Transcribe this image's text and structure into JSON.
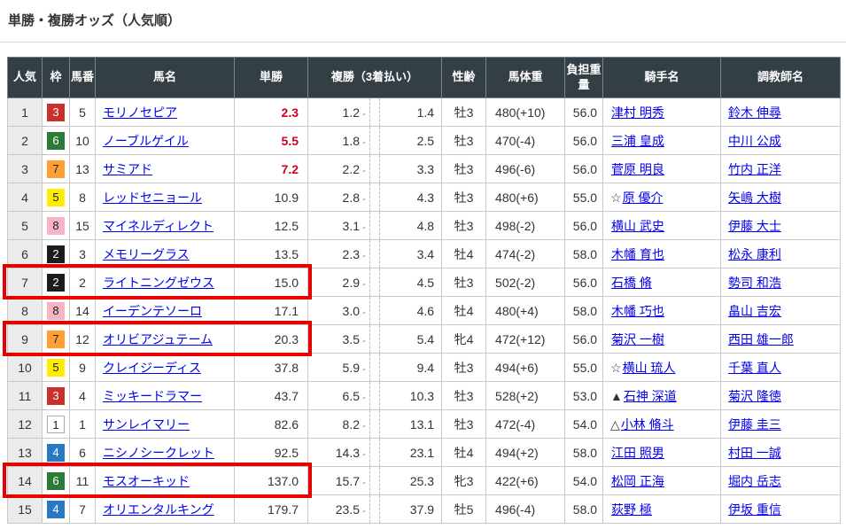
{
  "page": {
    "title": "単勝・複勝オッズ（人気順）"
  },
  "colors": {
    "header_bg": "#333e45",
    "hot_odds_red": "#cc0022",
    "highlight_red": "#e60000",
    "link_blue": "#0000ee",
    "rank_col_bg": "#ebebeb",
    "waku": {
      "1": {
        "bg": "#ffffff",
        "fg": "#222222",
        "border": "#aaaaaa"
      },
      "2": {
        "bg": "#1c1c1c",
        "fg": "#ffffff"
      },
      "3": {
        "bg": "#c9302c",
        "fg": "#ffffff"
      },
      "4": {
        "bg": "#2779c4",
        "fg": "#ffffff"
      },
      "5": {
        "bg": "#ffec00",
        "fg": "#222222"
      },
      "6": {
        "bg": "#2c7a38",
        "fg": "#ffffff"
      },
      "7": {
        "bg": "#ffa032",
        "fg": "#222222"
      },
      "8": {
        "bg": "#f6b3c3",
        "fg": "#222222"
      }
    }
  },
  "table": {
    "headers": {
      "ninki": "人気",
      "waku": "枠",
      "umaban": "馬番",
      "bamei": "馬名",
      "tansho": "単勝",
      "fukusho": "複勝（3着払い）",
      "seirei": "性齢",
      "bataiju": "馬体重",
      "futan": "負担重量",
      "kishu": "騎手名",
      "chokyoshi": "調教師名"
    },
    "place_separator": "-",
    "rows": [
      {
        "rank": "1",
        "waku": "3",
        "umaban": "5",
        "name": "モリノセピア",
        "win": "2.3",
        "win_hot": true,
        "place_low": "1.2",
        "place_high": "1.4",
        "sex_age": "牡3",
        "weight": "480(+10)",
        "impost": "56.0",
        "jockey_prefix": "",
        "jockey": "津村 明秀",
        "trainer": "鈴木 伸尋",
        "highlight": false
      },
      {
        "rank": "2",
        "waku": "6",
        "umaban": "10",
        "name": "ノーブルゲイル",
        "win": "5.5",
        "win_hot": true,
        "place_low": "1.8",
        "place_high": "2.5",
        "sex_age": "牡3",
        "weight": "470(-4)",
        "impost": "56.0",
        "jockey_prefix": "",
        "jockey": "三浦 皇成",
        "trainer": "中川 公成",
        "highlight": false
      },
      {
        "rank": "3",
        "waku": "7",
        "umaban": "13",
        "name": "サミアド",
        "win": "7.2",
        "win_hot": true,
        "place_low": "2.2",
        "place_high": "3.3",
        "sex_age": "牡3",
        "weight": "496(-6)",
        "impost": "56.0",
        "jockey_prefix": "",
        "jockey": "菅原 明良",
        "trainer": "竹内 正洋",
        "highlight": false
      },
      {
        "rank": "4",
        "waku": "5",
        "umaban": "8",
        "name": "レッドセニョール",
        "win": "10.9",
        "win_hot": false,
        "place_low": "2.8",
        "place_high": "4.3",
        "sex_age": "牡3",
        "weight": "480(+6)",
        "impost": "55.0",
        "jockey_prefix": "☆",
        "jockey": "原 優介",
        "trainer": "矢嶋 大樹",
        "highlight": false
      },
      {
        "rank": "5",
        "waku": "8",
        "umaban": "15",
        "name": "マイネルディレクト",
        "win": "12.5",
        "win_hot": false,
        "place_low": "3.1",
        "place_high": "4.8",
        "sex_age": "牡3",
        "weight": "498(-2)",
        "impost": "56.0",
        "jockey_prefix": "",
        "jockey": "横山 武史",
        "trainer": "伊藤 大士",
        "highlight": false
      },
      {
        "rank": "6",
        "waku": "2",
        "umaban": "3",
        "name": "メモリーグラス",
        "win": "13.5",
        "win_hot": false,
        "place_low": "2.3",
        "place_high": "3.4",
        "sex_age": "牡4",
        "weight": "474(-2)",
        "impost": "58.0",
        "jockey_prefix": "",
        "jockey": "木幡 育也",
        "trainer": "松永 康利",
        "highlight": false
      },
      {
        "rank": "7",
        "waku": "2",
        "umaban": "2",
        "name": "ライトニングゼウス",
        "win": "15.0",
        "win_hot": false,
        "place_low": "2.9",
        "place_high": "4.5",
        "sex_age": "牡3",
        "weight": "502(-2)",
        "impost": "56.0",
        "jockey_prefix": "",
        "jockey": "石橋 脩",
        "trainer": "勢司 和浩",
        "highlight": true
      },
      {
        "rank": "8",
        "waku": "8",
        "umaban": "14",
        "name": "イーデンテソーロ",
        "win": "17.1",
        "win_hot": false,
        "place_low": "3.0",
        "place_high": "4.6",
        "sex_age": "牡4",
        "weight": "480(+4)",
        "impost": "58.0",
        "jockey_prefix": "",
        "jockey": "木幡 巧也",
        "trainer": "畠山 吉宏",
        "highlight": false
      },
      {
        "rank": "9",
        "waku": "7",
        "umaban": "12",
        "name": "オリビアジュテーム",
        "win": "20.3",
        "win_hot": false,
        "place_low": "3.5",
        "place_high": "5.4",
        "sex_age": "牝4",
        "weight": "472(+12)",
        "impost": "56.0",
        "jockey_prefix": "",
        "jockey": "菊沢 一樹",
        "trainer": "西田 雄一郎",
        "highlight": true
      },
      {
        "rank": "10",
        "waku": "5",
        "umaban": "9",
        "name": "クレイジーディス",
        "win": "37.8",
        "win_hot": false,
        "place_low": "5.9",
        "place_high": "9.4",
        "sex_age": "牡3",
        "weight": "494(+6)",
        "impost": "55.0",
        "jockey_prefix": "☆",
        "jockey": "横山 琉人",
        "trainer": "千葉 直人",
        "highlight": false
      },
      {
        "rank": "11",
        "waku": "3",
        "umaban": "4",
        "name": "ミッキードラマー",
        "win": "43.7",
        "win_hot": false,
        "place_low": "6.5",
        "place_high": "10.3",
        "sex_age": "牡3",
        "weight": "528(+2)",
        "impost": "53.0",
        "jockey_prefix": "▲",
        "jockey": "石神 深道",
        "trainer": "菊沢 隆徳",
        "highlight": false
      },
      {
        "rank": "12",
        "waku": "1",
        "umaban": "1",
        "name": "サンレイマリー",
        "win": "82.6",
        "win_hot": false,
        "place_low": "8.2",
        "place_high": "13.1",
        "sex_age": "牡3",
        "weight": "472(-4)",
        "impost": "54.0",
        "jockey_prefix": "△",
        "jockey": "小林 脩斗",
        "trainer": "伊藤 圭三",
        "highlight": false
      },
      {
        "rank": "13",
        "waku": "4",
        "umaban": "6",
        "name": "ニシノシークレット",
        "win": "92.5",
        "win_hot": false,
        "place_low": "14.3",
        "place_high": "23.1",
        "sex_age": "牡4",
        "weight": "494(+2)",
        "impost": "58.0",
        "jockey_prefix": "",
        "jockey": "江田 照男",
        "trainer": "村田 一誠",
        "highlight": false
      },
      {
        "rank": "14",
        "waku": "6",
        "umaban": "11",
        "name": "モスオーキッド",
        "win": "137.0",
        "win_hot": false,
        "place_low": "15.7",
        "place_high": "25.3",
        "sex_age": "牝3",
        "weight": "422(+6)",
        "impost": "54.0",
        "jockey_prefix": "",
        "jockey": "松岡 正海",
        "trainer": "堀内 岳志",
        "highlight": true
      },
      {
        "rank": "15",
        "waku": "4",
        "umaban": "7",
        "name": "オリエンタルキング",
        "win": "179.7",
        "win_hot": false,
        "place_low": "23.5",
        "place_high": "37.9",
        "sex_age": "牡5",
        "weight": "496(-4)",
        "impost": "58.0",
        "jockey_prefix": "",
        "jockey": "荻野 極",
        "trainer": "伊坂 重信",
        "highlight": false
      }
    ]
  }
}
